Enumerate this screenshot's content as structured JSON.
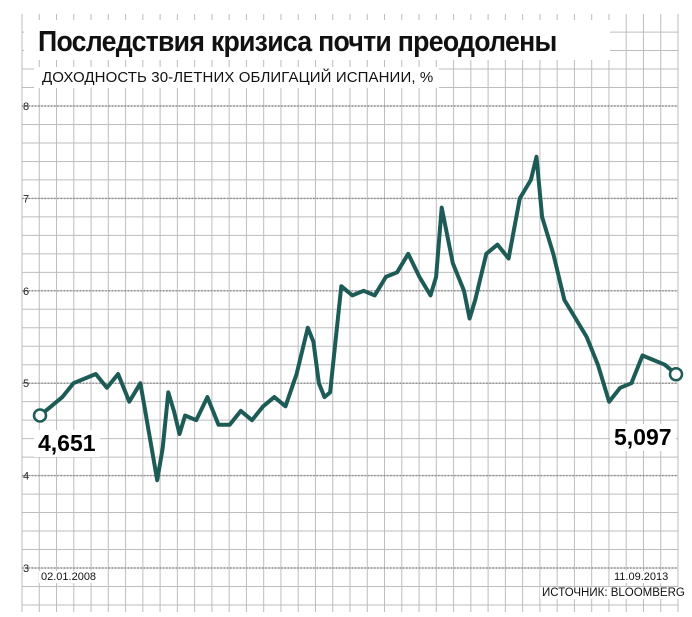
{
  "header": {
    "title": "Последствия кризиса почти преодолены",
    "subtitle": "ДОХОДНОСТЬ 30-ЛЕТНИХ ОБЛИГАЦИЙ ИСПАНИИ, %"
  },
  "annotations": {
    "start_value": "4,651",
    "end_value": "5,097",
    "start_date": "02.01.2008",
    "end_date": "11.09.2013",
    "source": "ИСТОЧНИК: BLOOMBERG"
  },
  "colors": {
    "line": "#1d5b57",
    "grid": "#bdbdbd",
    "dotted": "#8a8a8a",
    "background": "#ffffff"
  },
  "chart_data": {
    "type": "line",
    "title": "Последствия кризиса почти преодолены",
    "subtitle": "ДОХОДНОСТЬ 30-ЛЕТНИХ ОБЛИГАЦИЙ ИСПАНИИ, %",
    "xlabel": "",
    "ylabel": "",
    "ylim": [
      3,
      8
    ],
    "yticks": [
      "3",
      "4",
      "5",
      "6",
      "7",
      "8"
    ],
    "x_range": [
      "02.01.2008",
      "11.09.2013"
    ],
    "grid": true,
    "series": [
      {
        "x": [
          2008.0,
          2008.1,
          2008.2,
          2008.3,
          2008.4,
          2008.5,
          2008.6,
          2008.7,
          2008.8,
          2008.9,
          2009.0,
          2009.05,
          2009.1,
          2009.15,
          2009.2,
          2009.25,
          2009.3,
          2009.4,
          2009.5,
          2009.6,
          2009.7,
          2009.8,
          2009.9,
          2010.0,
          2010.1,
          2010.2,
          2010.3,
          2010.4,
          2010.45,
          2010.5,
          2010.55,
          2010.6,
          2010.7,
          2010.8,
          2010.9,
          2011.0,
          2011.05,
          2011.1,
          2011.2,
          2011.3,
          2011.4,
          2011.5,
          2011.55,
          2011.6,
          2011.7,
          2011.8,
          2011.85,
          2011.9,
          2012.0,
          2012.1,
          2012.2,
          2012.3,
          2012.4,
          2012.45,
          2012.5,
          2012.55,
          2012.6,
          2012.7,
          2012.8,
          2012.9,
          2013.0,
          2013.1,
          2013.2,
          2013.3,
          2013.4,
          2013.5,
          2013.6,
          2013.7
        ],
        "y": [
          4.651,
          4.75,
          4.85,
          5.0,
          5.05,
          5.1,
          4.95,
          5.1,
          4.8,
          5.0,
          4.3,
          3.95,
          4.3,
          4.9,
          4.7,
          4.45,
          4.65,
          4.6,
          4.85,
          4.55,
          4.55,
          4.7,
          4.6,
          4.75,
          4.85,
          4.75,
          5.1,
          5.6,
          5.45,
          5.0,
          4.85,
          4.9,
          6.05,
          5.95,
          6.0,
          5.95,
          6.05,
          6.15,
          6.2,
          6.4,
          6.15,
          5.95,
          6.15,
          6.9,
          6.3,
          6.0,
          5.7,
          5.9,
          6.4,
          6.5,
          6.35,
          7.0,
          7.2,
          7.45,
          6.8,
          6.6,
          6.4,
          5.9,
          5.7,
          5.5,
          5.2,
          4.8,
          4.95,
          5.0,
          5.3,
          5.25,
          5.2,
          5.097
        ]
      }
    ]
  }
}
